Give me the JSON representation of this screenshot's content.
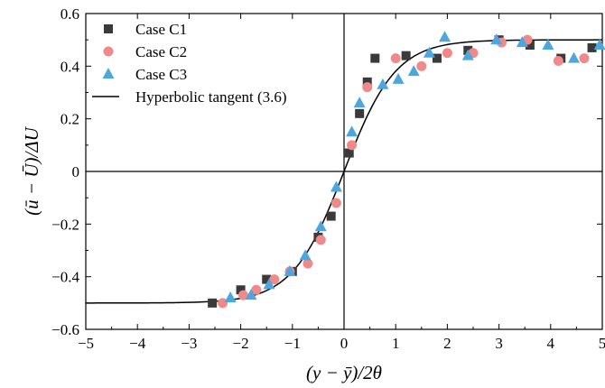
{
  "chart_data": {
    "type": "scatter",
    "xlabel": "(y − ȳ)/2θ",
    "ylabel": "(ū − Ū)/ΔU",
    "xlim": [
      -5,
      5
    ],
    "ylim": [
      -0.6,
      0.6
    ],
    "xticks": [
      -5,
      -4,
      -3,
      -2,
      -1,
      0,
      1,
      2,
      3,
      4,
      5
    ],
    "yticks": [
      -0.6,
      -0.4,
      -0.2,
      0,
      0.2,
      0.4,
      0.6
    ],
    "xtick_labels": [
      "−5",
      "−4",
      "−3",
      "−2",
      "−1",
      "0",
      "1",
      "2",
      "3",
      "4",
      "5"
    ],
    "ytick_labels": [
      "−0.6",
      "−0.4",
      "−0.2",
      "0",
      "0.2",
      "0.4",
      "0.6"
    ],
    "grid": false,
    "zero_lines": true,
    "legend_position": "top-left",
    "series": [
      {
        "name": "Case C1",
        "marker": "square",
        "color": "#3a3a3a",
        "points": [
          [
            -2.55,
            -0.5
          ],
          [
            -2.0,
            -0.45
          ],
          [
            -1.5,
            -0.41
          ],
          [
            -1.0,
            -0.38
          ],
          [
            -0.5,
            -0.25
          ],
          [
            -0.25,
            -0.17
          ],
          [
            0.1,
            0.07
          ],
          [
            0.3,
            0.22
          ],
          [
            0.45,
            0.34
          ],
          [
            0.6,
            0.43
          ],
          [
            1.2,
            0.44
          ],
          [
            1.8,
            0.43
          ],
          [
            2.4,
            0.46
          ],
          [
            3.0,
            0.5
          ],
          [
            3.6,
            0.48
          ],
          [
            4.2,
            0.43
          ],
          [
            4.8,
            0.47
          ]
        ]
      },
      {
        "name": "Case C2",
        "marker": "circle",
        "color": "#f08a8a",
        "points": [
          [
            -2.35,
            -0.5
          ],
          [
            -1.95,
            -0.47
          ],
          [
            -1.7,
            -0.45
          ],
          [
            -1.35,
            -0.41
          ],
          [
            -1.05,
            -0.38
          ],
          [
            -0.7,
            -0.35
          ],
          [
            -0.45,
            -0.26
          ],
          [
            -0.15,
            -0.12
          ],
          [
            0.15,
            0.1
          ],
          [
            0.45,
            0.32
          ],
          [
            1.0,
            0.43
          ],
          [
            1.5,
            0.4
          ],
          [
            2.0,
            0.45
          ],
          [
            2.5,
            0.45
          ],
          [
            3.05,
            0.49
          ],
          [
            3.55,
            0.5
          ],
          [
            4.15,
            0.42
          ],
          [
            4.65,
            0.43
          ]
        ]
      },
      {
        "name": "Case C3",
        "marker": "triangle",
        "color": "#4da6dd",
        "points": [
          [
            -2.2,
            -0.48
          ],
          [
            -1.8,
            -0.47
          ],
          [
            -1.45,
            -0.43
          ],
          [
            -1.05,
            -0.38
          ],
          [
            -0.75,
            -0.32
          ],
          [
            -0.45,
            -0.21
          ],
          [
            -0.15,
            -0.06
          ],
          [
            0.15,
            0.15
          ],
          [
            0.3,
            0.26
          ],
          [
            0.75,
            0.33
          ],
          [
            1.05,
            0.35
          ],
          [
            1.35,
            0.38
          ],
          [
            1.65,
            0.45
          ],
          [
            1.95,
            0.51
          ],
          [
            2.4,
            0.44
          ],
          [
            2.95,
            0.5
          ],
          [
            3.45,
            0.49
          ],
          [
            3.95,
            0.48
          ],
          [
            4.45,
            0.43
          ],
          [
            4.95,
            0.48
          ]
        ]
      },
      {
        "name": "Hyperbolic tangent (3.6)",
        "type": "line",
        "color": "#000000",
        "function": "0.5*tanh(x)"
      }
    ]
  }
}
